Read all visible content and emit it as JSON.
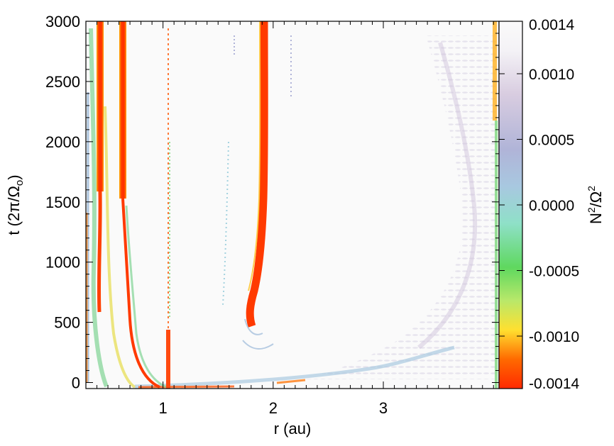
{
  "chart_data": {
    "type": "heatmap",
    "xlabel": "r (au)",
    "ylabel_text": "t (2π/Ω",
    "ylabel_sub": "o",
    "ylabel_close": ")",
    "x_ticks": [
      1,
      2,
      3
    ],
    "x_tick_labels": [
      "1",
      "2",
      "3"
    ],
    "xlim": [
      0.3,
      4.05
    ],
    "y_ticks": [
      0,
      500,
      1000,
      1500,
      2000,
      2500,
      3000
    ],
    "y_tick_labels": [
      "0",
      "500",
      "1000",
      "1500",
      "2000",
      "2500",
      "3000"
    ],
    "ylim": [
      -50,
      3000
    ],
    "colorbar": {
      "label_base": "N",
      "label_mid": "/Ω",
      "label_sup": "2",
      "range": [
        -0.0014,
        0.0014
      ],
      "tick_labels": [
        "0.0014",
        "0.0010",
        "0.0005",
        "0.0000",
        "-0.0005",
        "-0.0010",
        "-0.0014"
      ],
      "tick_values": [
        0.0014,
        0.001,
        0.0005,
        0.0,
        -0.0005,
        -0.001,
        -0.0014
      ],
      "colors": [
        "#ff2a00",
        "#ff6a00",
        "#ffe030",
        "#b8e86a",
        "#5fd85f",
        "#8fe0c8",
        "#a8c8e0",
        "#b0b4d8",
        "#d8cce0",
        "#f4f2f6",
        "#fafafa"
      ]
    },
    "features": [
      {
        "name": "inner-band",
        "r": 0.38,
        "t": [
          0,
          3000
        ],
        "value": -0.0014
      },
      {
        "name": "band-0.6au",
        "r": 0.6,
        "t": [
          100,
          3000
        ],
        "value": -0.0014
      },
      {
        "name": "band-1au",
        "r": 1.0,
        "t": [
          0,
          2700
        ],
        "value": -0.0012
      },
      {
        "name": "band-1.8au",
        "r": 1.85,
        "t": [
          500,
          3000
        ],
        "value": -0.0014
      },
      {
        "name": "wave-region",
        "r": [
          3.0,
          4.0
        ],
        "t": [
          0,
          3000
        ],
        "value": 0.0004
      }
    ]
  }
}
